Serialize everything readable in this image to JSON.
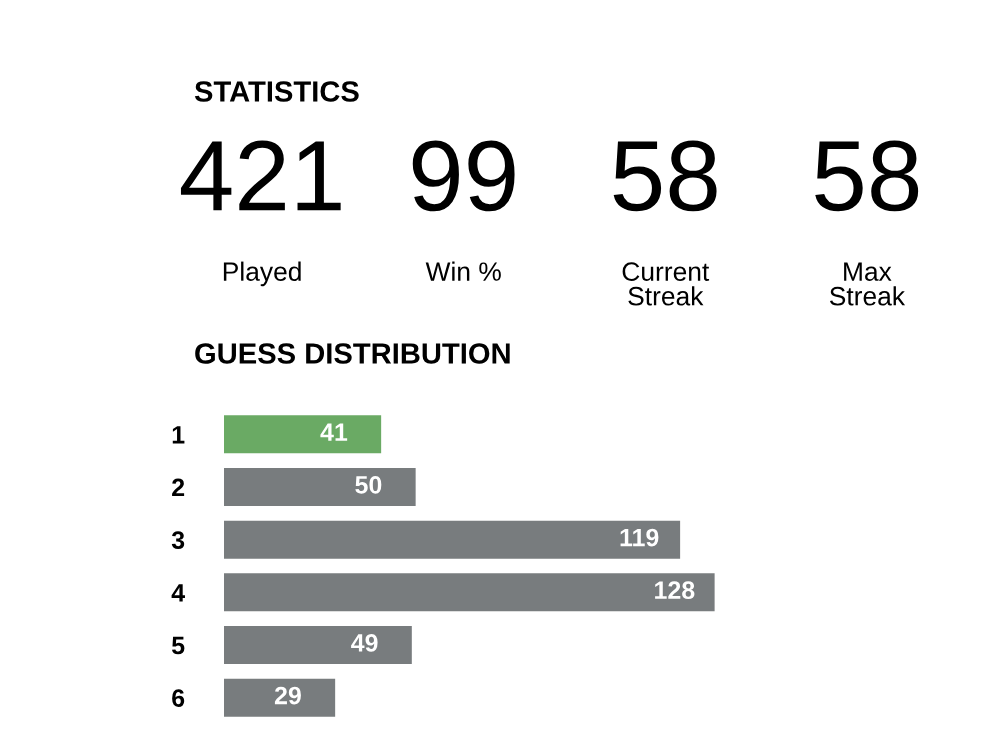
{
  "chart_data": [
    {
      "type": "other",
      "title": "STATISTICS",
      "annotations": [
        "421",
        "Played",
        "99",
        "Win %",
        "58",
        "Current\nStreak",
        "58",
        "Max\nStreak"
      ]
    },
    {
      "type": "bar",
      "orientation": "horizontal",
      "title": "GUESS DISTRIBUTION",
      "categories": [
        "1",
        "2",
        "3",
        "4",
        "5",
        "6"
      ],
      "values": [
        41,
        50,
        119,
        128,
        49,
        29
      ],
      "colors": [
        "#6aaa64",
        "#787c7e",
        "#787c7e",
        "#787c7e",
        "#787c7e",
        "#787c7e"
      ],
      "data_labels": true,
      "tick_labels": "y"
    }
  ]
}
